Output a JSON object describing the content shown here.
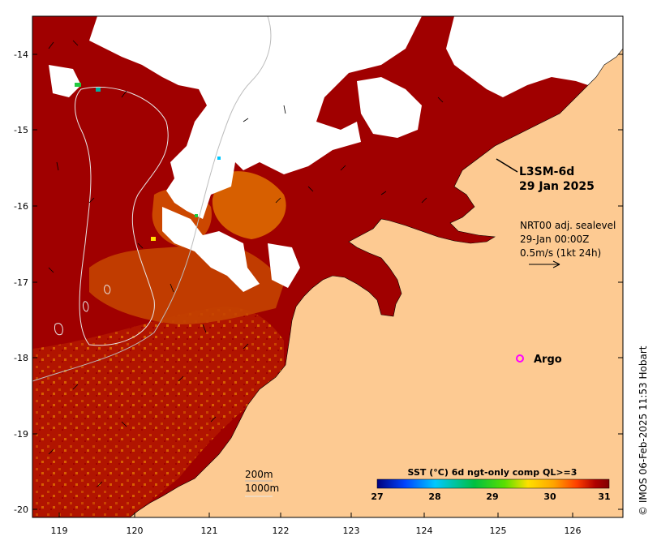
{
  "map": {
    "product_title": "L3SM-6d",
    "product_date": "29 Jan 2025",
    "current_source": "NRT00 adj. sealevel",
    "current_time": "29-Jan 00:00Z",
    "current_scale": "0.5m/s (1kt 24h)",
    "argo_label": "Argo",
    "isobath_200": "200m",
    "isobath_1000": "1000m",
    "credit": "© IMOS 06-Feb-2025 11:53 Hobart",
    "y_axis_ticks": [
      "-14",
      "-15",
      "-16",
      "-17",
      "-18",
      "-19",
      "-20"
    ],
    "x_axis_ticks": [
      "119",
      "120",
      "121",
      "122",
      "123",
      "124",
      "125",
      "126"
    ]
  },
  "colorbar": {
    "title": "SST (°C) 6d ngt-only comp QL>=3",
    "ticks": [
      "27",
      "28",
      "29",
      "30",
      "31"
    ],
    "colors": [
      "#00007f",
      "#0044ff",
      "#00c8ff",
      "#00c040",
      "#5adf00",
      "#ffe000",
      "#ffa500",
      "#ff4000",
      "#b00000",
      "#800000"
    ]
  },
  "colors": {
    "land": "#fdca92",
    "sea_dark": "#a00000",
    "sea_mid": "#c83a00",
    "sea_warm": "#e07000",
    "argo_marker": "#ff00ff"
  }
}
